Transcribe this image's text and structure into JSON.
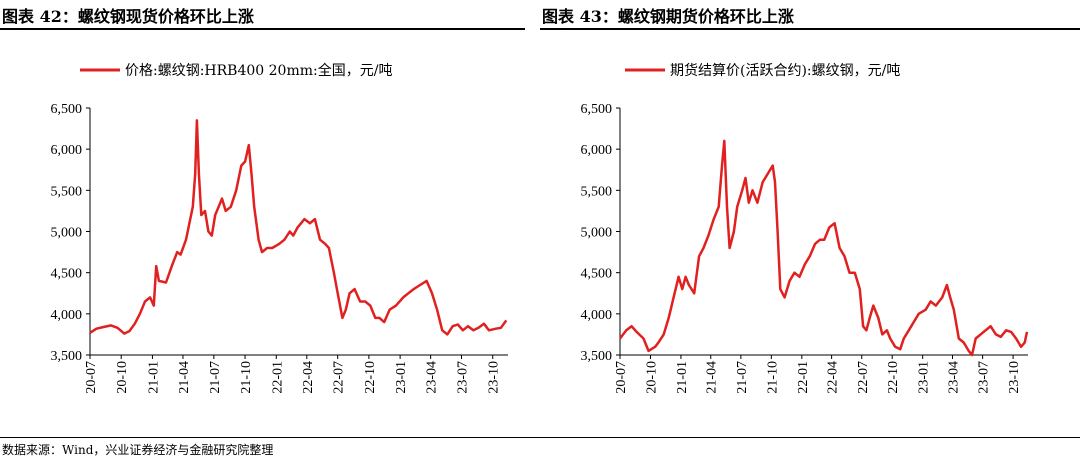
{
  "headers": {
    "left": "图表 42：螺纹钢现货价格环比上涨",
    "right": "图表 43：螺纹钢期货价格环比上涨"
  },
  "source": "数据来源：Wind，兴业证券经济与金融研究院整理",
  "colors": {
    "series": "#e0211f",
    "axis": "#000000"
  },
  "chart_data": [
    {
      "type": "line",
      "title": "",
      "x_ticks": [
        "20-07",
        "20-10",
        "21-01",
        "21-04",
        "21-07",
        "21-10",
        "22-01",
        "22-04",
        "22-07",
        "22-10",
        "23-01",
        "23-04",
        "23-07",
        "23-10"
      ],
      "y_ticks": [
        "3,500",
        "4,000",
        "4,500",
        "5,000",
        "5,500",
        "6,000",
        "6,500"
      ],
      "ylim": [
        3500,
        6500
      ],
      "xlim": [
        "2020-07-01",
        "2023-11-15"
      ],
      "series": [
        {
          "name": "价格:螺纹钢:HRB400 20mm:全国，元/吨",
          "points": [
            [
              "2020-07-01",
              3770
            ],
            [
              "2020-07-20",
              3820
            ],
            [
              "2020-08-10",
              3840
            ],
            [
              "2020-09-01",
              3860
            ],
            [
              "2020-09-20",
              3830
            ],
            [
              "2020-10-10",
              3760
            ],
            [
              "2020-10-25",
              3790
            ],
            [
              "2020-11-10",
              3880
            ],
            [
              "2020-11-25",
              4000
            ],
            [
              "2020-12-10",
              4150
            ],
            [
              "2020-12-25",
              4200
            ],
            [
              "2021-01-05",
              4100
            ],
            [
              "2021-01-12",
              4580
            ],
            [
              "2021-01-20",
              4400
            ],
            [
              "2021-02-10",
              4380
            ],
            [
              "2021-03-01",
              4600
            ],
            [
              "2021-03-15",
              4750
            ],
            [
              "2021-03-25",
              4720
            ],
            [
              "2021-04-10",
              4900
            ],
            [
              "2021-04-20",
              5100
            ],
            [
              "2021-04-30",
              5300
            ],
            [
              "2021-05-07",
              5700
            ],
            [
              "2021-05-12",
              6350
            ],
            [
              "2021-05-18",
              5700
            ],
            [
              "2021-05-25",
              5200
            ],
            [
              "2021-06-05",
              5250
            ],
            [
              "2021-06-15",
              5000
            ],
            [
              "2021-06-25",
              4950
            ],
            [
              "2021-07-05",
              5200
            ],
            [
              "2021-07-15",
              5300
            ],
            [
              "2021-07-25",
              5400
            ],
            [
              "2021-08-05",
              5250
            ],
            [
              "2021-08-20",
              5300
            ],
            [
              "2021-09-05",
              5500
            ],
            [
              "2021-09-20",
              5800
            ],
            [
              "2021-10-01",
              5850
            ],
            [
              "2021-10-12",
              6050
            ],
            [
              "2021-10-20",
              5700
            ],
            [
              "2021-10-28",
              5300
            ],
            [
              "2021-11-10",
              4900
            ],
            [
              "2021-11-20",
              4750
            ],
            [
              "2021-12-05",
              4800
            ],
            [
              "2021-12-20",
              4800
            ],
            [
              "2022-01-10",
              4850
            ],
            [
              "2022-01-25",
              4900
            ],
            [
              "2022-02-10",
              5000
            ],
            [
              "2022-02-20",
              4950
            ],
            [
              "2022-03-05",
              5050
            ],
            [
              "2022-03-15",
              5100
            ],
            [
              "2022-03-25",
              5150
            ],
            [
              "2022-04-10",
              5100
            ],
            [
              "2022-04-25",
              5150
            ],
            [
              "2022-05-10",
              4900
            ],
            [
              "2022-05-25",
              4850
            ],
            [
              "2022-06-05",
              4800
            ],
            [
              "2022-06-20",
              4500
            ],
            [
              "2022-07-01",
              4250
            ],
            [
              "2022-07-15",
              3950
            ],
            [
              "2022-07-25",
              4050
            ],
            [
              "2022-08-05",
              4250
            ],
            [
              "2022-08-20",
              4300
            ],
            [
              "2022-09-05",
              4150
            ],
            [
              "2022-09-20",
              4150
            ],
            [
              "2022-10-05",
              4100
            ],
            [
              "2022-10-20",
              3950
            ],
            [
              "2022-11-01",
              3950
            ],
            [
              "2022-11-15",
              3900
            ],
            [
              "2022-12-01",
              4050
            ],
            [
              "2022-12-20",
              4100
            ],
            [
              "2023-01-10",
              4200
            ],
            [
              "2023-01-25",
              4250
            ],
            [
              "2023-02-10",
              4300
            ],
            [
              "2023-03-01",
              4350
            ],
            [
              "2023-03-20",
              4400
            ],
            [
              "2023-04-05",
              4250
            ],
            [
              "2023-04-20",
              4050
            ],
            [
              "2023-05-05",
              3800
            ],
            [
              "2023-05-20",
              3750
            ],
            [
              "2023-06-05",
              3850
            ],
            [
              "2023-06-20",
              3870
            ],
            [
              "2023-07-05",
              3800
            ],
            [
              "2023-07-20",
              3850
            ],
            [
              "2023-08-05",
              3800
            ],
            [
              "2023-08-20",
              3830
            ],
            [
              "2023-09-05",
              3880
            ],
            [
              "2023-09-20",
              3800
            ],
            [
              "2023-10-10",
              3820
            ],
            [
              "2023-10-25",
              3830
            ],
            [
              "2023-11-10",
              3920
            ]
          ]
        }
      ]
    },
    {
      "type": "line",
      "title": "",
      "x_ticks": [
        "20-07",
        "20-10",
        "21-01",
        "21-04",
        "21-07",
        "21-10",
        "22-01",
        "22-04",
        "22-07",
        "22-10",
        "23-01",
        "23-04",
        "23-07",
        "23-10"
      ],
      "y_ticks": [
        "3,500",
        "4,000",
        "4,500",
        "5,000",
        "5,500",
        "6,000",
        "6,500"
      ],
      "ylim": [
        3500,
        6500
      ],
      "xlim": [
        "2020-07-01",
        "2023-11-15"
      ],
      "series": [
        {
          "name": "期货结算价(活跃合约):螺纹钢，元/吨",
          "points": [
            [
              "2020-07-01",
              3700
            ],
            [
              "2020-07-20",
              3800
            ],
            [
              "2020-08-05",
              3850
            ],
            [
              "2020-08-20",
              3780
            ],
            [
              "2020-09-10",
              3700
            ],
            [
              "2020-09-25",
              3550
            ],
            [
              "2020-10-15",
              3600
            ],
            [
              "2020-10-25",
              3650
            ],
            [
              "2020-11-10",
              3750
            ],
            [
              "2020-11-25",
              3950
            ],
            [
              "2020-12-10",
              4200
            ],
            [
              "2020-12-25",
              4450
            ],
            [
              "2021-01-05",
              4300
            ],
            [
              "2021-01-15",
              4450
            ],
            [
              "2021-01-25",
              4350
            ],
            [
              "2021-02-10",
              4250
            ],
            [
              "2021-02-25",
              4700
            ],
            [
              "2021-03-10",
              4800
            ],
            [
              "2021-03-25",
              4950
            ],
            [
              "2021-04-10",
              5150
            ],
            [
              "2021-04-25",
              5300
            ],
            [
              "2021-05-05",
              5800
            ],
            [
              "2021-05-12",
              6100
            ],
            [
              "2021-05-20",
              5300
            ],
            [
              "2021-05-28",
              4800
            ],
            [
              "2021-06-10",
              5000
            ],
            [
              "2021-06-20",
              5300
            ],
            [
              "2021-07-05",
              5500
            ],
            [
              "2021-07-15",
              5650
            ],
            [
              "2021-07-25",
              5350
            ],
            [
              "2021-08-05",
              5500
            ],
            [
              "2021-08-20",
              5350
            ],
            [
              "2021-09-05",
              5600
            ],
            [
              "2021-09-20",
              5700
            ],
            [
              "2021-10-05",
              5800
            ],
            [
              "2021-10-12",
              5600
            ],
            [
              "2021-10-20",
              5000
            ],
            [
              "2021-10-28",
              4300
            ],
            [
              "2021-11-10",
              4200
            ],
            [
              "2021-11-25",
              4400
            ],
            [
              "2021-12-10",
              4500
            ],
            [
              "2021-12-25",
              4450
            ],
            [
              "2022-01-10",
              4600
            ],
            [
              "2022-01-25",
              4700
            ],
            [
              "2022-02-10",
              4850
            ],
            [
              "2022-02-25",
              4900
            ],
            [
              "2022-03-10",
              4900
            ],
            [
              "2022-03-25",
              5050
            ],
            [
              "2022-04-10",
              5100
            ],
            [
              "2022-04-25",
              4800
            ],
            [
              "2022-05-10",
              4700
            ],
            [
              "2022-05-25",
              4500
            ],
            [
              "2022-06-10",
              4500
            ],
            [
              "2022-06-25",
              4300
            ],
            [
              "2022-07-05",
              3850
            ],
            [
              "2022-07-15",
              3800
            ],
            [
              "2022-07-25",
              3950
            ],
            [
              "2022-08-05",
              4100
            ],
            [
              "2022-08-20",
              3950
            ],
            [
              "2022-09-01",
              3750
            ],
            [
              "2022-09-15",
              3800
            ],
            [
              "2022-09-25",
              3700
            ],
            [
              "2022-10-10",
              3600
            ],
            [
              "2022-10-25",
              3570
            ],
            [
              "2022-11-05",
              3700
            ],
            [
              "2022-11-20",
              3800
            ],
            [
              "2022-12-05",
              3900
            ],
            [
              "2022-12-20",
              4000
            ],
            [
              "2023-01-10",
              4050
            ],
            [
              "2023-01-25",
              4150
            ],
            [
              "2023-02-10",
              4100
            ],
            [
              "2023-03-01",
              4200
            ],
            [
              "2023-03-15",
              4350
            ],
            [
              "2023-03-25",
              4200
            ],
            [
              "2023-04-05",
              4050
            ],
            [
              "2023-04-20",
              3700
            ],
            [
              "2023-05-05",
              3650
            ],
            [
              "2023-05-20",
              3550
            ],
            [
              "2023-05-30",
              3500
            ],
            [
              "2023-06-10",
              3700
            ],
            [
              "2023-06-25",
              3750
            ],
            [
              "2023-07-10",
              3800
            ],
            [
              "2023-07-25",
              3850
            ],
            [
              "2023-08-10",
              3750
            ],
            [
              "2023-08-25",
              3720
            ],
            [
              "2023-09-10",
              3800
            ],
            [
              "2023-09-25",
              3780
            ],
            [
              "2023-10-10",
              3700
            ],
            [
              "2023-10-25",
              3600
            ],
            [
              "2023-11-05",
              3650
            ],
            [
              "2023-11-12",
              3780
            ]
          ]
        }
      ]
    }
  ]
}
